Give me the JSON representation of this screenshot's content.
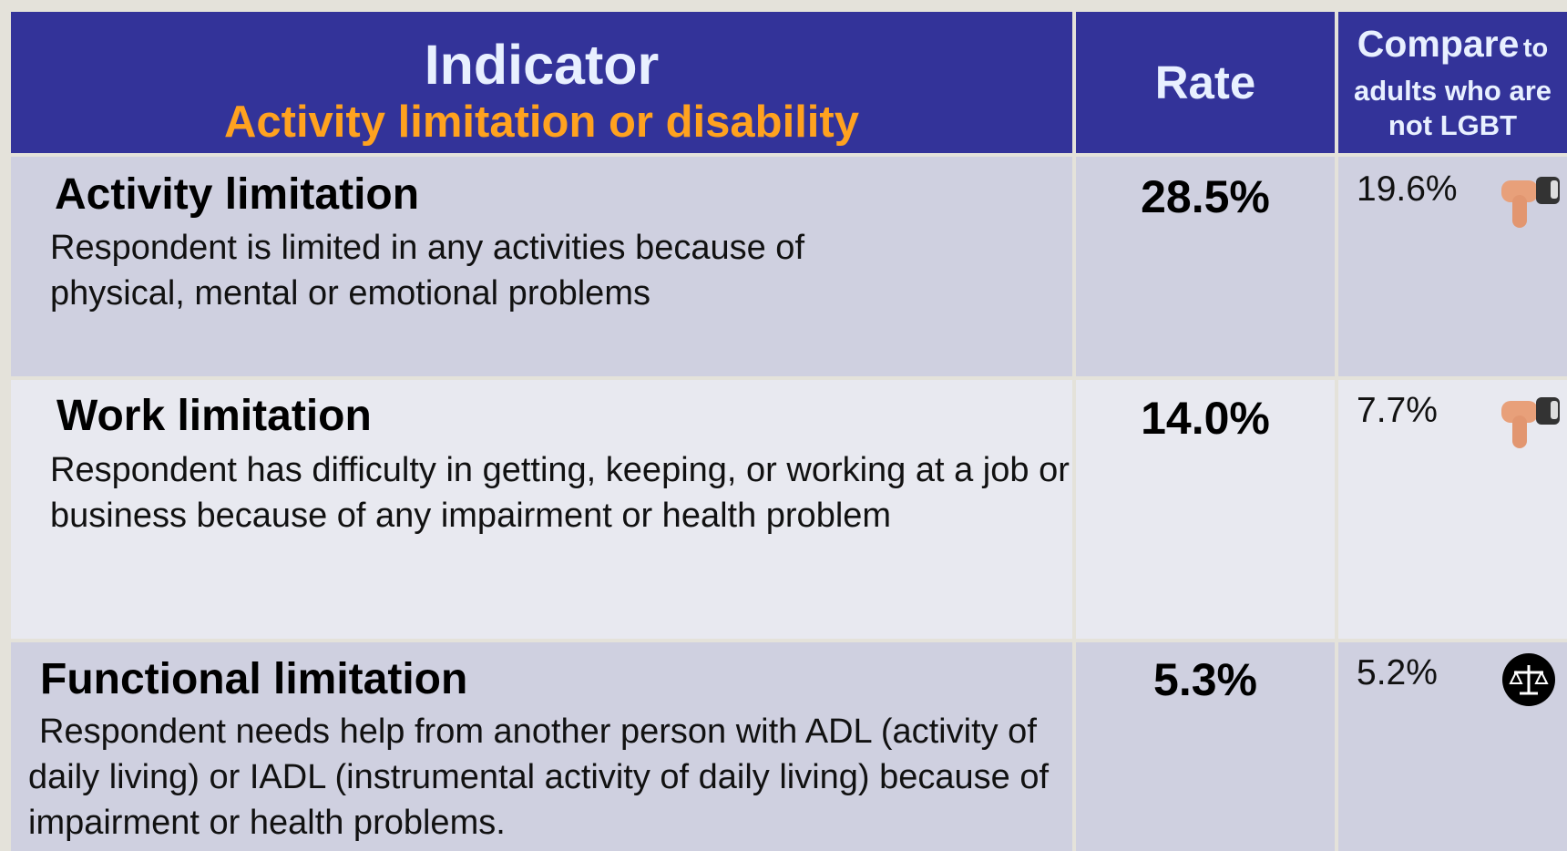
{
  "header": {
    "indicator": "Indicator",
    "subtitle": "Activity limitation or disability",
    "rate": "Rate",
    "compare": [
      "Compare",
      "to",
      "adults who are",
      "not LGBT"
    ]
  },
  "table": {
    "rows": [
      {
        "title": "Activity limitation",
        "description": "Respondent is limited in any activities because of physical, mental or emotional problems",
        "rate": "28.5%",
        "compare": "19.6%"
      },
      {
        "title": "Work limitation",
        "description": "Respondent has difficulty in getting, keeping, or working at a job or business  because of any impairment or health problem",
        "rate": "14.0%",
        "compare": "7.7%"
      },
      {
        "title": "Functional limitation",
        "description": "Respondent needs help from another person with ADL (activity of daily living) or IADL (instrumental activity of daily living) because of impairment or health problems.",
        "rate": "5.3%",
        "compare": "5.2%"
      }
    ]
  }
}
